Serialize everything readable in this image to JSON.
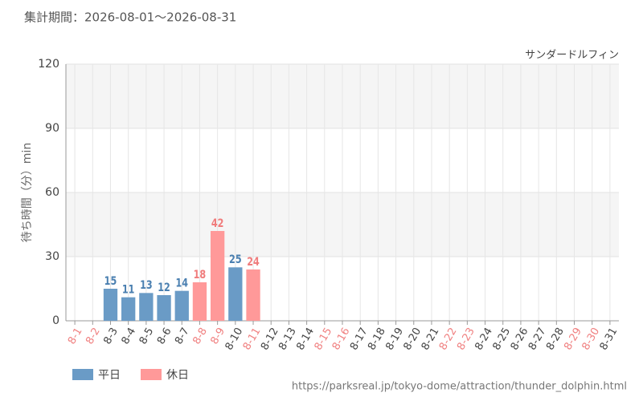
{
  "chart_data": {
    "type": "bar",
    "period": "集計期間：2026-08-01～2026-08-31",
    "title": "サンダードルフィン",
    "y_label": "待ち時間（分）min",
    "source": "https://parksreal.jp/tokyo-dome/attraction/thunder_dolphin.html",
    "categories": [
      "8-1",
      "8-2",
      "8-3",
      "8-4",
      "8-5",
      "8-6",
      "8-7",
      "8-8",
      "8-9",
      "8-10",
      "8-11",
      "8-12",
      "8-13",
      "8-14",
      "8-15",
      "8-16",
      "8-17",
      "8-18",
      "8-19",
      "8-20",
      "8-21",
      "8-22",
      "8-23",
      "8-24",
      "8-25",
      "8-26",
      "8-27",
      "8-28",
      "8-29",
      "8-30",
      "8-31"
    ],
    "category_label_colors": [
      "#f08080",
      "#f08080",
      "#444444",
      "#444444",
      "#444444",
      "#444444",
      "#444444",
      "#f08080",
      "#f08080",
      "#444444",
      "#f08080",
      "#444444",
      "#444444",
      "#444444",
      "#f08080",
      "#f08080",
      "#444444",
      "#444444",
      "#444444",
      "#444444",
      "#444444",
      "#f08080",
      "#f08080",
      "#444444",
      "#444444",
      "#444444",
      "#444444",
      "#444444",
      "#f08080",
      "#f08080",
      "#444444"
    ],
    "series": [
      {
        "name": "平日",
        "color": "#6a9bc6",
        "label_color": "#4a7fb0",
        "values": [
          null,
          null,
          15,
          11,
          13,
          12,
          14,
          null,
          null,
          25,
          null,
          null,
          null,
          null,
          null,
          null,
          null,
          null,
          null,
          null,
          null,
          null,
          null,
          null,
          null,
          null,
          null,
          null,
          null,
          null,
          null
        ]
      },
      {
        "name": "休日",
        "color": "#ff9999",
        "label_color": "#f07c7c",
        "values": [
          null,
          null,
          null,
          null,
          null,
          null,
          null,
          18,
          42,
          null,
          24,
          null,
          null,
          null,
          null,
          null,
          null,
          null,
          null,
          null,
          null,
          null,
          null,
          null,
          null,
          null,
          null,
          null,
          null,
          null,
          null
        ]
      }
    ],
    "ylim": [
      0,
      120
    ],
    "yticks": [
      0,
      30,
      60,
      90,
      120
    ],
    "grid": true
  }
}
